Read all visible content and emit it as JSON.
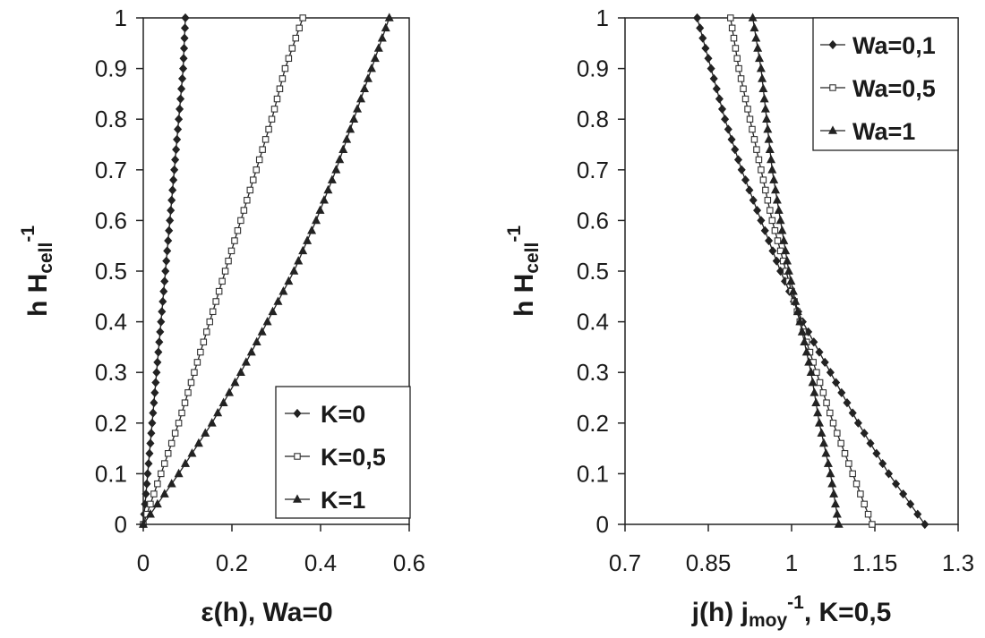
{
  "chart_data": [
    {
      "type": "line",
      "xlabel_main": "ε(h), Wa=0",
      "ylabel_main": "h H",
      "ylabel_sub": "cell",
      "ylabel_sup": "-1",
      "xlim": [
        0,
        0.6
      ],
      "ylim": [
        0,
        1
      ],
      "x_ticks": [
        "0",
        "0.2",
        "0.4",
        "0.6"
      ],
      "y_ticks": [
        "0",
        "0.1",
        "0.2",
        "0.3",
        "0.4",
        "0.5",
        "0.6",
        "0.7",
        "0.8",
        "0.9",
        "1"
      ],
      "legend_position": "bottom-right",
      "series": [
        {
          "name": "K=0",
          "marker": "diamond",
          "x": [
            0.0,
            0.01,
            0.02,
            0.03,
            0.04,
            0.05,
            0.06,
            0.07,
            0.08,
            0.09,
            0.095
          ],
          "y": [
            0.0,
            0.1,
            0.2,
            0.3,
            0.4,
            0.5,
            0.6,
            0.7,
            0.8,
            0.9,
            1.0
          ]
        },
        {
          "name": "K=0,5",
          "marker": "square",
          "x": [
            0.0,
            0.04,
            0.08,
            0.115,
            0.15,
            0.185,
            0.22,
            0.255,
            0.29,
            0.32,
            0.36
          ],
          "y": [
            0.0,
            0.1,
            0.2,
            0.3,
            0.4,
            0.5,
            0.6,
            0.7,
            0.8,
            0.9,
            1.0
          ]
        },
        {
          "name": "K=1",
          "marker": "triangle",
          "x": [
            0.0,
            0.08,
            0.155,
            0.22,
            0.28,
            0.34,
            0.39,
            0.435,
            0.475,
            0.515,
            0.555
          ],
          "y": [
            0.0,
            0.1,
            0.2,
            0.3,
            0.4,
            0.5,
            0.6,
            0.7,
            0.8,
            0.9,
            1.0
          ]
        }
      ]
    },
    {
      "type": "line",
      "xlabel_main": "j(h) j",
      "xlabel_sub": "moy",
      "xlabel_sup": "-1",
      "xlabel_tail": ", K=0,5",
      "ylabel_main": "h H",
      "ylabel_sub": "cell",
      "ylabel_sup": "-1",
      "xlim": [
        0.7,
        1.3
      ],
      "ylim": [
        0,
        1
      ],
      "x_ticks": [
        "0.7",
        "0.85",
        "1",
        "1.15",
        "1.3"
      ],
      "y_ticks": [
        "0",
        "0.1",
        "0.2",
        "0.3",
        "0.4",
        "0.5",
        "0.6",
        "0.7",
        "0.8",
        "0.9",
        "1"
      ],
      "legend_position": "top-right",
      "series": [
        {
          "name": "Wa=0,1",
          "marker": "diamond",
          "x": [
            1.24,
            1.175,
            1.12,
            1.07,
            1.02,
            0.98,
            0.945,
            0.91,
            0.88,
            0.855,
            0.83
          ],
          "y": [
            0.0,
            0.1,
            0.2,
            0.3,
            0.4,
            0.5,
            0.6,
            0.7,
            0.8,
            0.9,
            1.0
          ]
        },
        {
          "name": "Wa=0,5",
          "marker": "square",
          "x": [
            1.145,
            1.11,
            1.075,
            1.045,
            1.015,
            0.99,
            0.965,
            0.945,
            0.925,
            0.905,
            0.89
          ],
          "y": [
            0.0,
            0.1,
            0.2,
            0.3,
            0.4,
            0.5,
            0.6,
            0.7,
            0.8,
            0.9,
            1.0
          ]
        },
        {
          "name": "Wa=1",
          "marker": "triangle",
          "x": [
            1.085,
            1.07,
            1.05,
            1.035,
            1.015,
            0.995,
            0.98,
            0.965,
            0.955,
            0.945,
            0.93
          ],
          "y": [
            0.0,
            0.1,
            0.2,
            0.3,
            0.4,
            0.5,
            0.6,
            0.7,
            0.8,
            0.9,
            1.0
          ]
        }
      ]
    }
  ]
}
